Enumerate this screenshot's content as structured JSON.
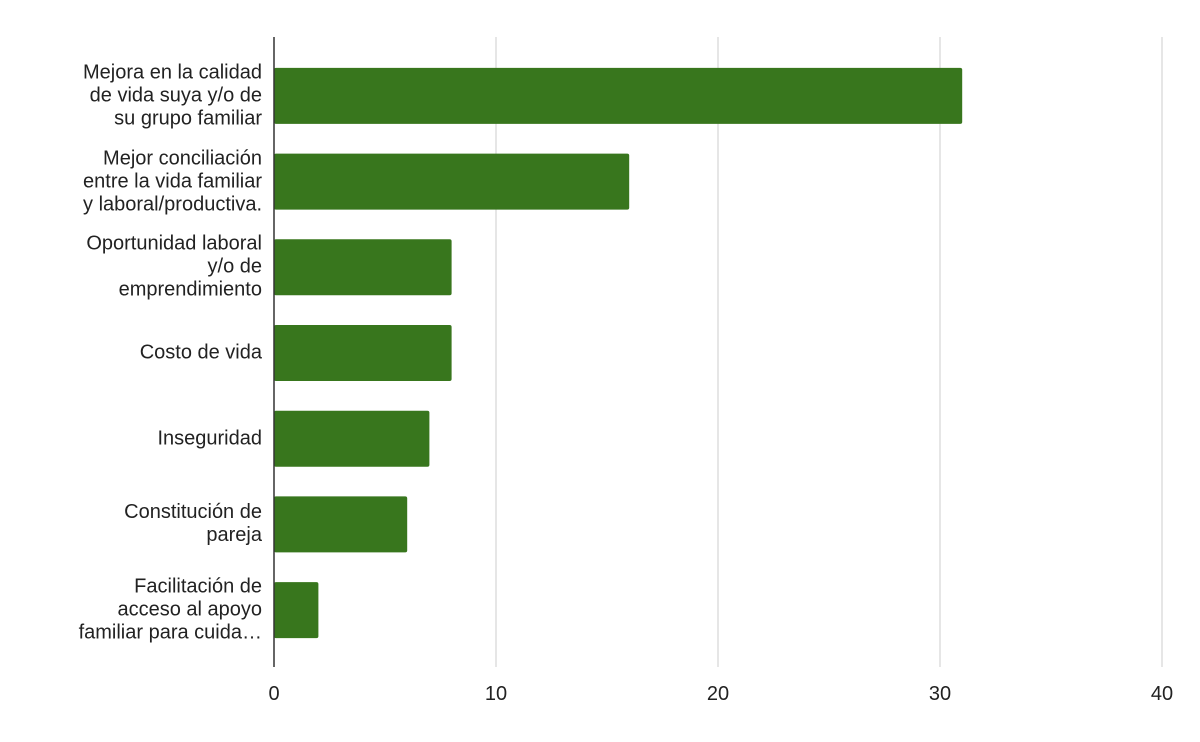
{
  "chart_data": {
    "type": "barh",
    "categories": [
      "Mejora en la calidad\nde vida suya y/o de\nsu grupo familiar",
      "Mejor conciliación\nentre la vida familiar\ny laboral/productiva.",
      "Oportunidad laboral\ny/o de\nemprendimiento",
      "Costo de vida",
      "Inseguridad",
      "Constitución de\npareja",
      "Facilitación de\nacceso al apoyo\nfamiliar para cuida…"
    ],
    "values": [
      31,
      16,
      8,
      8,
      7,
      6,
      2
    ],
    "color": "#38761d",
    "xlim": [
      0,
      40
    ],
    "xticks": [
      0,
      10,
      20,
      30,
      40
    ],
    "grid": true
  }
}
